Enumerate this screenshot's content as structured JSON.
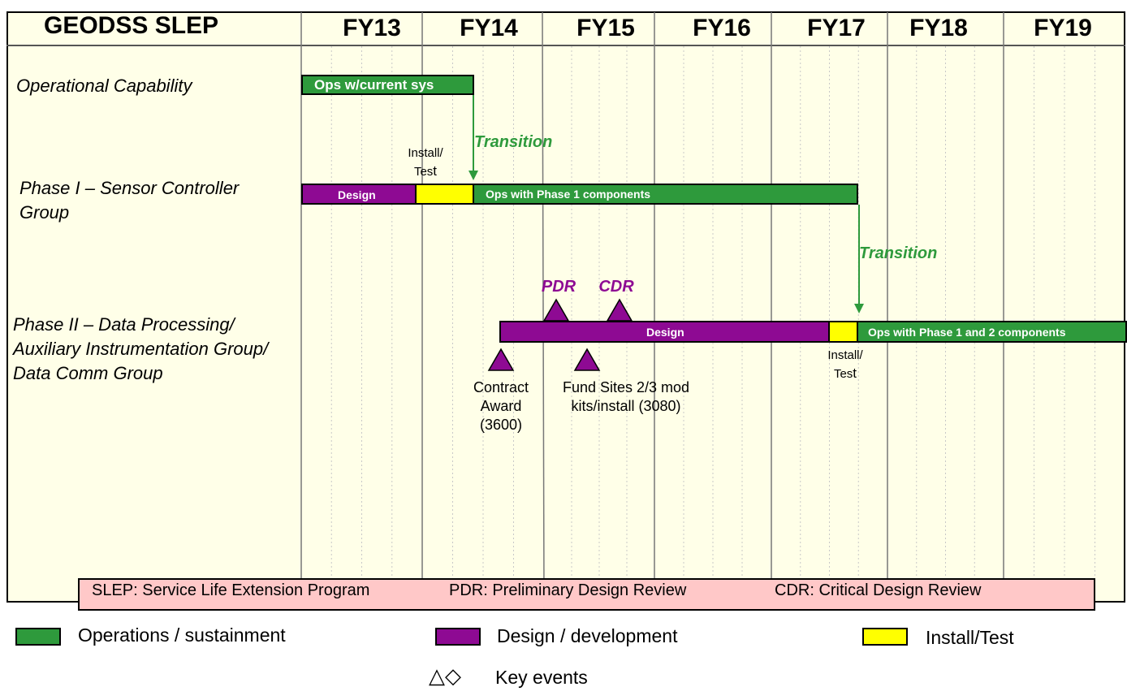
{
  "title": "GEODSS SLEP",
  "fiscal_years": [
    "FY13",
    "FY14",
    "FY15",
    "FY16",
    "FY17",
    "FY18",
    "FY19"
  ],
  "colors": {
    "ops": "#2E9A3C",
    "design": "#8E0A93",
    "install": "#FFFF00",
    "abbr_bg": "#FFC8C8",
    "canvas": "#FFFFE8"
  },
  "rows": {
    "operational": "Operational Capability",
    "phase1_line1": "Phase I – Sensor Controller",
    "phase1_line2": "Group",
    "phase2_line1": "Phase II – Data Processing/",
    "phase2_line2": "Auxiliary Instrumentation Group/",
    "phase2_line3": "Data Comm Group"
  },
  "bars": {
    "ops_current": "Ops w/current sys",
    "p1_design": "Design",
    "p1_ops": "Ops with Phase 1 components",
    "p2_design": "Design",
    "p2_ops": "Ops with Phase 1 and 2 components"
  },
  "notes": {
    "install1_a": "Install/",
    "install1_b": "Tes",
    "install1_c": "t",
    "install2_a": "Install/",
    "install2_b": "Tes",
    "install2_c": "t",
    "transition1": "Transition",
    "transition2": "Transition"
  },
  "milestones": {
    "pdr": "PDR",
    "cdr": "CDR"
  },
  "events": {
    "contract_1": "Contract",
    "contract_2": "Award",
    "contract_3": "(3600)",
    "fund_1": "Fund Sites 2/3 mod",
    "fund_2": "kits/install (3080)"
  },
  "abbreviations": {
    "slep": "SLEP: Service Life Extension Program",
    "pdr": "PDR:  Preliminary Design Review",
    "cdr": "CDR: Critical Design Review"
  },
  "legend": {
    "ops": "Operations / sustainment",
    "design": "Design / development",
    "install": "Install/Test",
    "key_events_symbols": "△◇",
    "key_events": "Key events"
  }
}
